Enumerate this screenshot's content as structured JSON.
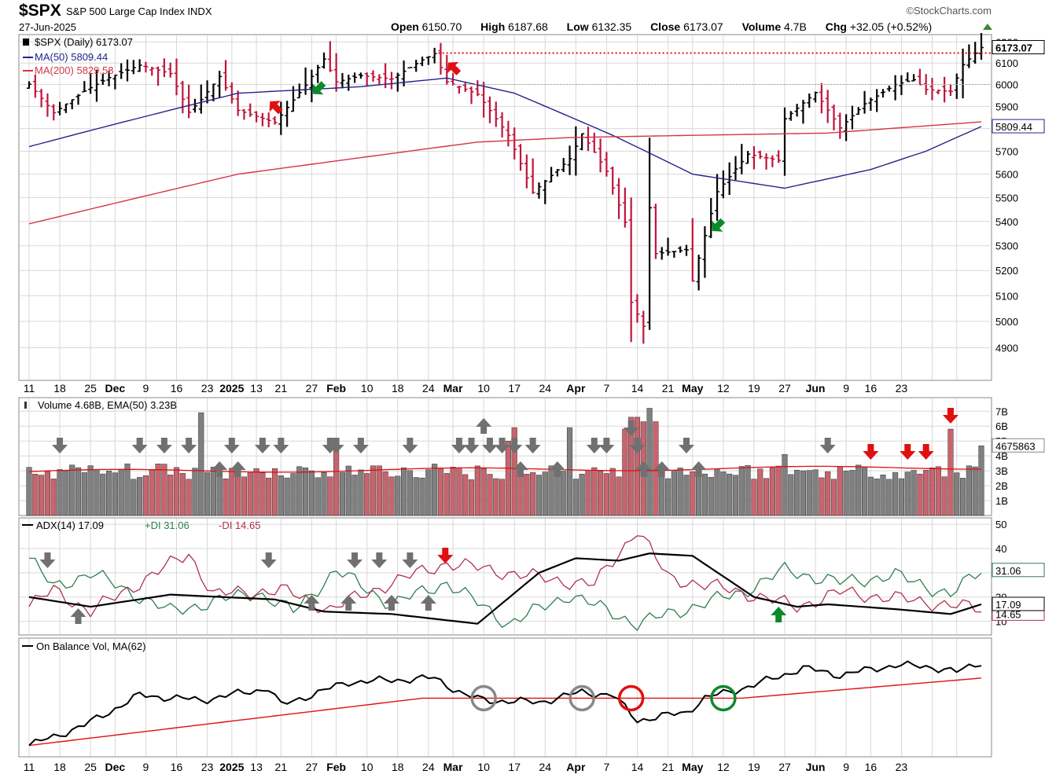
{
  "header": {
    "ticker": "$SPX",
    "description": "S&P 500 Large Cap Index INDX",
    "date": "27-Jun-2025",
    "brand": "©StockCharts.com",
    "open_label": "Open",
    "open": "6150.70",
    "high_label": "High",
    "high": "6187.68",
    "low_label": "Low",
    "low": "6132.35",
    "close_label": "Close",
    "close": "6173.07",
    "volume_label": "Volume",
    "volume": "4.7B",
    "chg_label": "Chg",
    "chg": "+32.05 (+0.52%)"
  },
  "colors": {
    "up_bar": "#000000",
    "down_bar": "#c0143c",
    "ma50": "#23238e",
    "ma200": "#d63347",
    "vol_up": "#808080",
    "vol_down": "#c8646e",
    "di_plus": "#2e7d4f",
    "di_minus": "#b03050",
    "grid": "#d8d8d8",
    "green_arrow": "#0b8a2a",
    "red_arrow": "#e01010",
    "gray_arrow": "#707070"
  },
  "chart_data": [
    {
      "type": "ohlc",
      "panel": "price",
      "legend": [
        "$SPX (Daily) 6173.07",
        "MA(50) 5809.44",
        "MA(200) 5829.58"
      ],
      "y_ticks": [
        4900,
        5000,
        5100,
        5200,
        5300,
        5400,
        5500,
        5600,
        5700,
        5800,
        5900,
        6000,
        6100,
        6200
      ],
      "ylim": [
        4790,
        6220
      ],
      "scale": "log",
      "last_label": "6173.07",
      "ma50_label": "5809.44",
      "resistance_level": 6147,
      "x_labels": [
        "11",
        "18",
        "25",
        "Dec",
        "9",
        "16",
        "23",
        "2025",
        "13",
        "21",
        "27",
        "Feb",
        "10",
        "18",
        "24",
        "Mar",
        "10",
        "17",
        "24",
        "Apr",
        "7",
        "14",
        "21",
        "May",
        "12",
        "19",
        "27",
        "Jun",
        "9",
        "16",
        "23"
      ],
      "close_anchors": [
        [
          "2024-11-11",
          6001
        ],
        [
          "2024-11-15",
          5871
        ],
        [
          "2024-11-22",
          5970
        ],
        [
          "2024-11-29",
          6032
        ],
        [
          "2024-12-06",
          6090
        ],
        [
          "2024-12-13",
          6051
        ],
        [
          "2024-12-18",
          5873
        ],
        [
          "2024-12-20",
          5931
        ],
        [
          "2024-12-26",
          6037
        ],
        [
          "2024-12-31",
          5882
        ],
        [
          "2025-01-10",
          5827
        ],
        [
          "2025-01-17",
          5997
        ],
        [
          "2025-01-23",
          6119
        ],
        [
          "2025-01-27",
          6012
        ],
        [
          "2025-01-31",
          6041
        ],
        [
          "2025-02-07",
          6026
        ],
        [
          "2025-02-14",
          6115
        ],
        [
          "2025-02-19",
          6144
        ],
        [
          "2025-02-21",
          6013
        ],
        [
          "2025-02-28",
          5955
        ],
        [
          "2025-03-07",
          5770
        ],
        [
          "2025-03-13",
          5522
        ],
        [
          "2025-03-21",
          5667
        ],
        [
          "2025-03-25",
          5777
        ],
        [
          "2025-03-31",
          5612
        ],
        [
          "2025-04-03",
          5397
        ],
        [
          "2025-04-04",
          5074
        ],
        [
          "2025-04-08",
          4982
        ],
        [
          "2025-04-09",
          5457
        ],
        [
          "2025-04-10",
          5268
        ],
        [
          "2025-04-17",
          5283
        ],
        [
          "2025-04-21",
          5158
        ],
        [
          "2025-04-25",
          5525
        ],
        [
          "2025-05-02",
          5687
        ],
        [
          "2025-05-09",
          5660
        ],
        [
          "2025-05-12",
          5844
        ],
        [
          "2025-05-19",
          5963
        ],
        [
          "2025-05-23",
          5803
        ],
        [
          "2025-05-30",
          5912
        ],
        [
          "2025-06-06",
          6000
        ],
        [
          "2025-06-11",
          6022
        ],
        [
          "2025-06-13",
          5977
        ],
        [
          "2025-06-20",
          5968
        ],
        [
          "2025-06-24",
          6092
        ],
        [
          "2025-06-27",
          6173
        ]
      ],
      "ma50_anchors": [
        [
          "2024-11-11",
          5720
        ],
        [
          "2024-12-02",
          5820
        ],
        [
          "2024-12-31",
          5960
        ],
        [
          "2025-01-31",
          5990
        ],
        [
          "2025-02-21",
          6030
        ],
        [
          "2025-03-10",
          5960
        ],
        [
          "2025-04-01",
          5770
        ],
        [
          "2025-04-21",
          5600
        ],
        [
          "2025-05-12",
          5540
        ],
        [
          "2025-06-02",
          5620
        ],
        [
          "2025-06-13",
          5700
        ],
        [
          "2025-06-27",
          5809
        ]
      ],
      "ma200_anchors": [
        [
          "2024-11-11",
          5390
        ],
        [
          "2024-12-31",
          5600
        ],
        [
          "2025-02-28",
          5740
        ],
        [
          "2025-03-21",
          5760
        ],
        [
          "2025-04-21",
          5770
        ],
        [
          "2025-05-21",
          5780
        ],
        [
          "2025-06-27",
          5830
        ]
      ],
      "buy_signals": [
        "2025-01-21",
        "2025-04-24"
      ],
      "sell_signals": [
        "2025-01-08",
        "2025-02-21"
      ]
    },
    {
      "type": "bar",
      "panel": "volume",
      "legend": "Volume 4.68B, EMA(50) 3.23B",
      "y_ticks": [
        "1B",
        "2B",
        "3B",
        "4B",
        "5B",
        "6B",
        "7B"
      ],
      "ylim": [
        0,
        7.7
      ],
      "last_label": "4675863",
      "ema50_start": 2.95,
      "ema50_end": 3.23,
      "spike_days": [
        [
          "2024-12-20",
          6.9
        ],
        [
          "2025-01-27",
          4.4
        ],
        [
          "2025-03-07",
          5.0
        ],
        [
          "2025-03-10",
          5.9
        ],
        [
          "2025-03-21",
          5.9
        ],
        [
          "2025-04-03",
          5.8
        ],
        [
          "2025-04-04",
          6.6
        ],
        [
          "2025-04-07",
          6.6
        ],
        [
          "2025-04-08",
          6.3
        ],
        [
          "2025-04-09",
          7.2
        ],
        [
          "2025-04-10",
          6.3
        ],
        [
          "2025-05-12",
          4.1
        ],
        [
          "2025-06-20",
          5.8
        ],
        [
          "2025-06-27",
          4.68
        ]
      ]
    },
    {
      "type": "line",
      "panel": "adx",
      "legend": "ADX(14) 17.09 +DI 31.06 -DI 14.65",
      "y_ticks": [
        10,
        20,
        30,
        40,
        50
      ],
      "ylim": [
        5,
        52
      ],
      "labels": {
        "di_plus": "31.06",
        "adx": "17.09",
        "di_minus": "14.65"
      },
      "adx_anchors": [
        [
          "2024-11-11",
          20
        ],
        [
          "2024-11-25",
          16
        ],
        [
          "2024-12-13",
          21
        ],
        [
          "2025-01-10",
          19
        ],
        [
          "2025-01-23",
          14
        ],
        [
          "2025-02-07",
          13
        ],
        [
          "2025-02-28",
          9
        ],
        [
          "2025-03-14",
          30
        ],
        [
          "2025-03-24",
          36
        ],
        [
          "2025-04-02",
          35
        ],
        [
          "2025-04-09",
          38
        ],
        [
          "2025-04-21",
          37
        ],
        [
          "2025-05-05",
          20
        ],
        [
          "2025-05-14",
          16
        ],
        [
          "2025-05-21",
          17
        ],
        [
          "2025-06-06",
          15
        ],
        [
          "2025-06-20",
          13
        ],
        [
          "2025-06-27",
          17
        ]
      ],
      "di_plus_anchors": [
        [
          "2024-11-11",
          36
        ],
        [
          "2024-11-15",
          24
        ],
        [
          "2024-11-25",
          30
        ],
        [
          "2024-12-13",
          14
        ],
        [
          "2025-01-06",
          22
        ],
        [
          "2025-01-15",
          14
        ],
        [
          "2025-01-27",
          31
        ],
        [
          "2025-02-07",
          17
        ],
        [
          "2025-02-21",
          26
        ],
        [
          "2025-03-07",
          9
        ],
        [
          "2025-03-21",
          21
        ],
        [
          "2025-04-07",
          9
        ],
        [
          "2025-04-21",
          16
        ],
        [
          "2025-05-01",
          22
        ],
        [
          "2025-05-12",
          31
        ],
        [
          "2025-05-23",
          26
        ],
        [
          "2025-06-06",
          29
        ],
        [
          "2025-06-20",
          21
        ],
        [
          "2025-06-27",
          31
        ]
      ],
      "di_minus_anchors": [
        [
          "2024-11-11",
          16
        ],
        [
          "2024-11-15",
          23
        ],
        [
          "2024-11-25",
          14
        ],
        [
          "2024-12-18",
          38
        ],
        [
          "2024-12-24",
          21
        ],
        [
          "2025-01-13",
          23
        ],
        [
          "2025-01-24",
          15
        ],
        [
          "2025-02-07",
          26
        ],
        [
          "2025-02-21",
          34
        ],
        [
          "2025-03-14",
          28
        ],
        [
          "2025-03-27",
          25
        ],
        [
          "2025-04-07",
          48
        ],
        [
          "2025-04-14",
          28
        ],
        [
          "2025-05-01",
          22
        ],
        [
          "2025-05-14",
          16
        ],
        [
          "2025-05-23",
          22
        ],
        [
          "2025-06-13",
          18
        ],
        [
          "2025-06-27",
          15
        ]
      ]
    },
    {
      "type": "line",
      "panel": "obv",
      "legend": "On Balance Vol, MA(62)",
      "obv_anchors": [
        [
          "2024-11-11",
          0.05
        ],
        [
          "2024-11-22",
          0.25
        ],
        [
          "2024-12-06",
          0.55
        ],
        [
          "2024-12-20",
          0.5
        ],
        [
          "2025-01-08",
          0.62
        ],
        [
          "2025-01-13",
          0.45
        ],
        [
          "2025-01-29",
          0.68
        ],
        [
          "2025-02-07",
          0.7
        ],
        [
          "2025-02-19",
          0.72
        ],
        [
          "2025-02-26",
          0.55
        ],
        [
          "2025-03-03",
          0.5
        ],
        [
          "2025-03-14",
          0.48
        ],
        [
          "2025-03-25",
          0.58
        ],
        [
          "2025-04-01",
          0.55
        ],
        [
          "2025-04-07",
          0.3
        ],
        [
          "2025-04-17",
          0.38
        ],
        [
          "2025-04-23",
          0.52
        ],
        [
          "2025-05-05",
          0.65
        ],
        [
          "2025-05-15",
          0.82
        ],
        [
          "2025-05-23",
          0.75
        ],
        [
          "2025-06-06",
          0.85
        ],
        [
          "2025-06-16",
          0.83
        ],
        [
          "2025-06-23",
          0.78
        ],
        [
          "2025-06-27",
          0.88
        ]
      ],
      "obv_ma_anchors": [
        [
          "2024-11-11",
          0.05
        ],
        [
          "2025-02-14",
          0.52
        ],
        [
          "2025-05-01",
          0.52
        ],
        [
          "2025-06-27",
          0.72
        ]
      ],
      "circles": [
        {
          "date": "2025-03-03",
          "color": "#888888"
        },
        {
          "date": "2025-03-25",
          "color": "#888888"
        },
        {
          "date": "2025-04-04",
          "color": "#e01010"
        },
        {
          "date": "2025-04-28",
          "color": "#0b8a2a"
        }
      ]
    }
  ]
}
